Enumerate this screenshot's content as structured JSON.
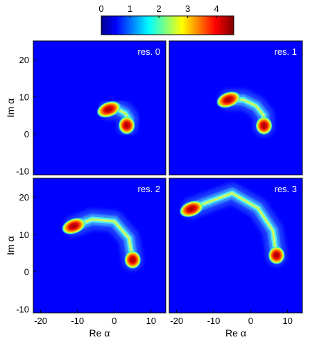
{
  "chart_data": {
    "type": "heatmap",
    "colorbar": {
      "ticks": [
        "0",
        "1",
        "2",
        "3",
        "4"
      ],
      "range": [
        0,
        4.6
      ],
      "placement": "top",
      "colormap": "jet"
    },
    "axes": {
      "xlabel": "Re α",
      "ylabel": "Im α",
      "xlim": [
        -22,
        14
      ],
      "ylim": [
        -11,
        25
      ],
      "xticks": [
        "-20",
        "-10",
        "0",
        "10"
      ],
      "yticks": [
        "20",
        "10",
        "0",
        "-10"
      ]
    },
    "panels": [
      {
        "label": "res. 0",
        "arc": [
          [
            3.5,
            2
          ],
          [
            4.0,
            4.0
          ],
          [
            3.0,
            5.5
          ],
          [
            1.0,
            6.6
          ],
          [
            -1.5,
            6.6
          ]
        ],
        "peaks": [
          {
            "x": -1.5,
            "y": 6.6,
            "value": 4.2
          },
          {
            "x": 3.4,
            "y": 2.3,
            "value": 4.0
          }
        ]
      },
      {
        "label": "res. 1",
        "arc": [
          [
            3.6,
            2
          ],
          [
            3.5,
            5.0
          ],
          [
            1.5,
            7.5
          ],
          [
            -2.0,
            9.2
          ],
          [
            -6.0,
            9.2
          ]
        ],
        "peaks": [
          {
            "x": -6.0,
            "y": 9.2,
            "value": 4.2
          },
          {
            "x": 3.6,
            "y": 2.2,
            "value": 4.1
          }
        ]
      },
      {
        "label": "res. 2",
        "arc": [
          [
            5.0,
            3.0
          ],
          [
            4.0,
            9.0
          ],
          [
            0.0,
            13.5
          ],
          [
            -6.0,
            14.0
          ],
          [
            -11.0,
            12.2
          ]
        ],
        "peaks": [
          {
            "x": -11.0,
            "y": 12.2,
            "value": 4.2
          },
          {
            "x": 5.0,
            "y": 3.2,
            "value": 4.2
          }
        ]
      },
      {
        "label": "res. 3",
        "arc": [
          [
            7.0,
            4.2
          ],
          [
            6.0,
            11.0
          ],
          [
            2.0,
            17.0
          ],
          [
            -5.0,
            21.0
          ],
          [
            -16.0,
            17.0
          ]
        ],
        "peaks": [
          {
            "x": -16.0,
            "y": 16.8,
            "value": 4.3
          },
          {
            "x": 7.0,
            "y": 4.4,
            "value": 4.2
          }
        ]
      }
    ]
  }
}
